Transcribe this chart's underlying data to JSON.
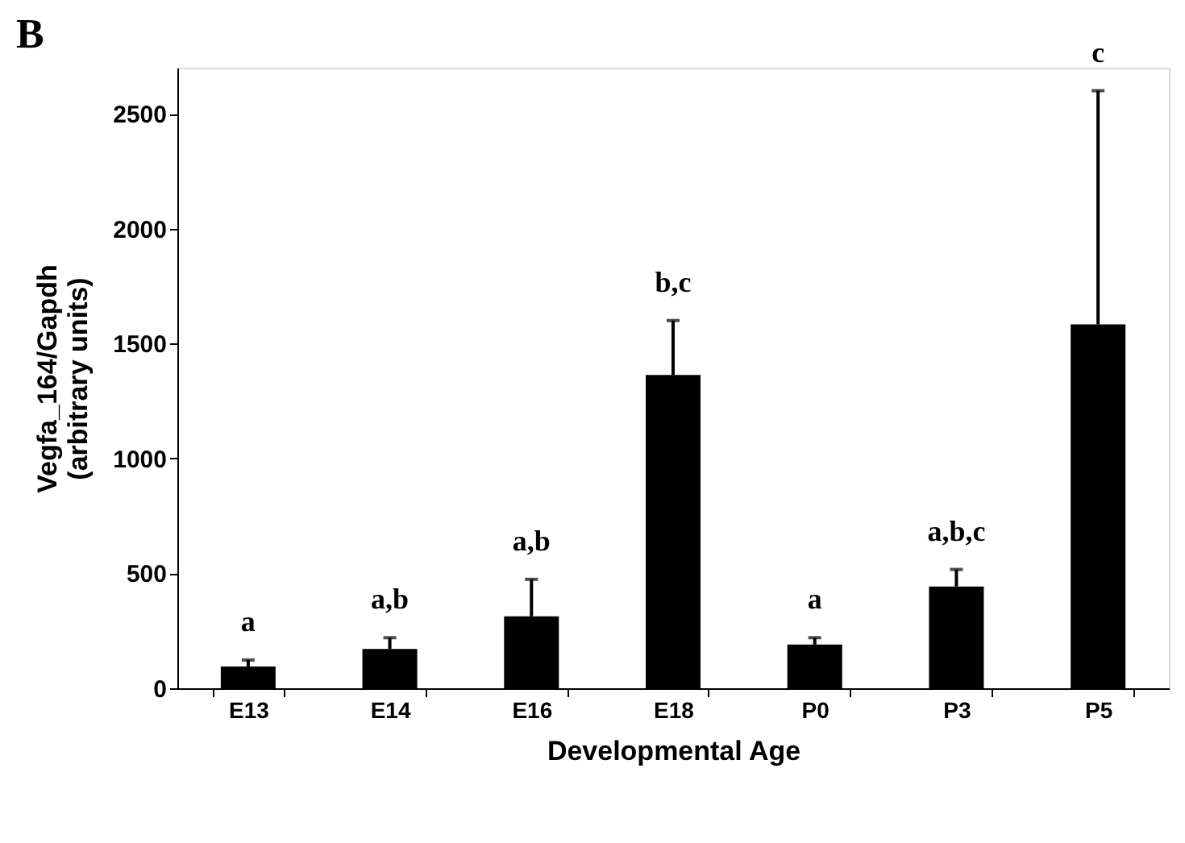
{
  "chart_data": {
    "type": "bar",
    "title": "B",
    "xlabel": "Developmental Age",
    "ylabel": "Vegfa_164/Gapdh\n(arbitrary units)",
    "categories": [
      "E13",
      "E14",
      "E16",
      "E18",
      "P0",
      "P3",
      "P5"
    ],
    "values": [
      95,
      171,
      313,
      1363,
      190,
      443,
      1583
    ],
    "errors": [
      [
        95,
        123
      ],
      [
        171,
        220
      ],
      [
        313,
        474
      ],
      [
        1363,
        1600
      ],
      [
        190,
        220
      ],
      [
        443,
        517
      ],
      [
        1583,
        2600
      ]
    ],
    "color": "#000000",
    "ylim": [
      0,
      2700
    ],
    "yticks": [
      0,
      500,
      1000,
      1500,
      2000,
      2500
    ],
    "grid": false,
    "annotations": [
      {
        "text": "a",
        "x": "E13",
        "y": 123
      },
      {
        "text": "a,b",
        "x": "E14",
        "y": 220
      },
      {
        "text": "a,b",
        "x": "E16",
        "y": 474
      },
      {
        "text": "b,c",
        "x": "E18",
        "y": 1600
      },
      {
        "text": "a",
        "x": "P0",
        "y": 220
      },
      {
        "text": "a,b,c",
        "x": "P3",
        "y": 517
      },
      {
        "text": "c",
        "x": "P5",
        "y": 2600
      }
    ]
  }
}
